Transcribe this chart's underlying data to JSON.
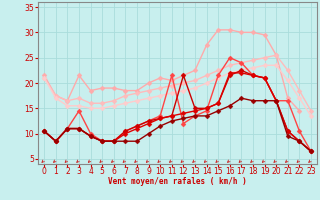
{
  "xlabel": "Vent moyen/en rafales ( km/h )",
  "xlim": [
    -0.5,
    23.5
  ],
  "ylim": [
    4,
    36
  ],
  "yticks": [
    5,
    10,
    15,
    20,
    25,
    30,
    35
  ],
  "xticks": [
    0,
    1,
    2,
    3,
    4,
    5,
    6,
    7,
    8,
    9,
    10,
    11,
    12,
    13,
    14,
    15,
    16,
    17,
    18,
    19,
    20,
    21,
    22,
    23
  ],
  "background_color": "#c8efee",
  "grid_color": "#aadcdc",
  "series": [
    {
      "x": [
        0,
        1,
        2,
        3,
        4,
        5,
        6,
        7,
        8,
        9,
        10,
        11,
        12,
        13,
        14,
        15,
        16,
        17,
        18,
        19,
        20,
        21,
        22
      ],
      "y": [
        21.5,
        17.5,
        16.5,
        21.5,
        18.5,
        19.0,
        19.0,
        18.5,
        18.5,
        20.0,
        21.0,
        20.5,
        21.5,
        22.5,
        27.5,
        30.5,
        30.5,
        30.0,
        30.0,
        29.5,
        25.5,
        17.0,
        14.5
      ],
      "color": "#ffaaaa",
      "linewidth": 1.0,
      "marker": "D",
      "markersize": 2.5
    },
    {
      "x": [
        0,
        1,
        2,
        3,
        4,
        5,
        6,
        7,
        8,
        9,
        10,
        11,
        12,
        13,
        14,
        15,
        16,
        17,
        18,
        19,
        20,
        21,
        22,
        23
      ],
      "y": [
        21.0,
        17.5,
        16.5,
        17.0,
        16.0,
        16.0,
        16.5,
        17.5,
        18.0,
        18.5,
        19.0,
        19.5,
        20.0,
        20.5,
        21.5,
        22.5,
        23.5,
        24.0,
        24.5,
        25.0,
        25.5,
        22.5,
        18.5,
        14.5
      ],
      "color": "#ffbbbb",
      "linewidth": 1.0,
      "marker": "D",
      "markersize": 2.5
    },
    {
      "x": [
        0,
        1,
        2,
        3,
        4,
        5,
        6,
        7,
        8,
        9,
        10,
        11,
        12,
        13,
        14,
        15,
        16,
        17,
        18,
        19,
        20,
        21,
        22,
        23
      ],
      "y": [
        21.0,
        17.0,
        15.5,
        15.5,
        15.0,
        15.0,
        15.5,
        16.0,
        16.5,
        17.0,
        17.5,
        18.0,
        18.5,
        19.0,
        20.0,
        21.0,
        22.0,
        22.5,
        23.0,
        23.5,
        23.5,
        20.5,
        17.0,
        13.5
      ],
      "color": "#ffcccc",
      "linewidth": 1.0,
      "marker": "D",
      "markersize": 2.5
    },
    {
      "x": [
        0,
        1,
        2,
        3,
        4,
        5,
        6,
        7,
        8,
        9,
        10,
        11,
        12,
        13,
        14,
        15,
        16,
        17,
        18,
        19,
        20,
        21,
        22,
        23
      ],
      "y": [
        10.5,
        8.5,
        11.0,
        14.5,
        10.0,
        8.5,
        8.5,
        10.5,
        11.5,
        12.5,
        13.5,
        21.5,
        12.0,
        13.5,
        14.5,
        21.5,
        25.0,
        24.0,
        21.5,
        21.0,
        16.5,
        16.5,
        10.5,
        6.5
      ],
      "color": "#ff4444",
      "linewidth": 1.0,
      "marker": "D",
      "markersize": 2.5
    },
    {
      "x": [
        0,
        1,
        2,
        3,
        4,
        5,
        6,
        7,
        8,
        9,
        10,
        11,
        12,
        13,
        14,
        15,
        16,
        17,
        18,
        19,
        20,
        21,
        22,
        23
      ],
      "y": [
        10.5,
        8.5,
        11.0,
        11.0,
        9.5,
        8.5,
        8.5,
        10.5,
        11.5,
        12.5,
        13.0,
        13.5,
        21.5,
        15.0,
        15.0,
        16.0,
        21.5,
        22.5,
        21.5,
        21.0,
        16.5,
        10.5,
        8.5,
        6.5
      ],
      "color": "#cc0000",
      "linewidth": 1.0,
      "marker": "D",
      "markersize": 2.5
    },
    {
      "x": [
        0,
        1,
        2,
        3,
        4,
        5,
        6,
        7,
        8,
        9,
        10,
        11,
        12,
        13,
        14,
        15,
        16,
        17,
        18,
        19,
        20,
        21,
        22,
        23
      ],
      "y": [
        10.5,
        8.5,
        11.0,
        11.0,
        9.5,
        8.5,
        8.5,
        10.0,
        11.0,
        12.0,
        13.0,
        13.5,
        14.0,
        14.5,
        15.0,
        16.0,
        22.0,
        22.0,
        21.5,
        21.0,
        16.5,
        10.5,
        8.5,
        6.5
      ],
      "color": "#dd0000",
      "linewidth": 1.0,
      "marker": "D",
      "markersize": 2.5
    },
    {
      "x": [
        0,
        1,
        2,
        3,
        4,
        5,
        6,
        7,
        8,
        9,
        10,
        11,
        12,
        13,
        14,
        15,
        16,
        17,
        18,
        19,
        20,
        21,
        22,
        23
      ],
      "y": [
        10.5,
        8.5,
        11.0,
        11.0,
        9.5,
        8.5,
        8.5,
        8.5,
        8.5,
        10.0,
        11.5,
        12.5,
        13.0,
        13.5,
        13.5,
        14.5,
        15.5,
        17.0,
        16.5,
        16.5,
        16.5,
        9.5,
        8.5,
        6.5
      ],
      "color": "#990000",
      "linewidth": 1.0,
      "marker": "D",
      "markersize": 2.5
    }
  ],
  "arrow_color": "#cc2222",
  "text_color": "#cc0000",
  "axis_color": "#888888"
}
